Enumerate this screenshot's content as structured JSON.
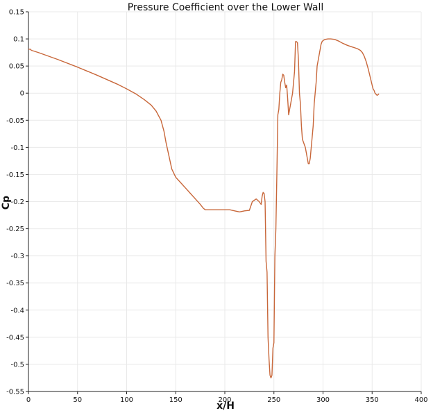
{
  "chart_data": {
    "type": "line",
    "title": "Pressure Coefficient over the Lower Wall",
    "xlabel": "x/H",
    "ylabel": "Cp",
    "xlim": [
      0,
      400
    ],
    "ylim": [
      -0.55,
      0.15
    ],
    "x_ticks": [
      "0",
      "50",
      "100",
      "150",
      "200",
      "250",
      "300",
      "350",
      "400"
    ],
    "y_ticks": [
      "0.15",
      "0.1",
      "0.05",
      "0",
      "-0.05",
      "-0.1",
      "-0.15",
      "-0.2",
      "-0.25",
      "-0.3",
      "-0.35",
      "-0.4",
      "-0.45",
      "-0.5",
      "-0.55"
    ],
    "grid": true,
    "series_color": "#c8673a",
    "series": [
      {
        "x": [
          0,
          2,
          3,
          10,
          30,
          50,
          70,
          90,
          100,
          110,
          118,
          125,
          130,
          135,
          138,
          140,
          143,
          146,
          150,
          155,
          160,
          165,
          170,
          175,
          178,
          180,
          190,
          200,
          205,
          210,
          215,
          220,
          225,
          228,
          232,
          235,
          237,
          238,
          239,
          240,
          241,
          242,
          243,
          244,
          245,
          246,
          247,
          248,
          249,
          250,
          251,
          252,
          253,
          254,
          255,
          256,
          257,
          258,
          259,
          260,
          261,
          262,
          263,
          264,
          265,
          266,
          267,
          268,
          269,
          270,
          271,
          272,
          273,
          274,
          275,
          276,
          277,
          278,
          279,
          280,
          281,
          282,
          283,
          284,
          285,
          286,
          287,
          288,
          289,
          290,
          291,
          292,
          293,
          294,
          295,
          296,
          297,
          298,
          299,
          300,
          302,
          305,
          308,
          312,
          316,
          320,
          325,
          330,
          335,
          338,
          340,
          342,
          344,
          346,
          348,
          350,
          351,
          352,
          353,
          354,
          355,
          356,
          357
        ],
        "y": [
          0.081,
          0.081,
          0.079,
          0.075,
          0.062,
          0.048,
          0.033,
          0.017,
          0.008,
          -0.002,
          -0.012,
          -0.022,
          -0.033,
          -0.05,
          -0.07,
          -0.09,
          -0.115,
          -0.14,
          -0.155,
          -0.165,
          -0.175,
          -0.185,
          -0.195,
          -0.205,
          -0.212,
          -0.215,
          -0.215,
          -0.215,
          -0.215,
          -0.217,
          -0.219,
          -0.217,
          -0.216,
          -0.2,
          -0.195,
          -0.2,
          -0.205,
          -0.19,
          -0.183,
          -0.185,
          -0.2,
          -0.31,
          -0.33,
          -0.45,
          -0.49,
          -0.52,
          -0.525,
          -0.52,
          -0.47,
          -0.46,
          -0.3,
          -0.25,
          -0.15,
          -0.04,
          -0.03,
          0.0,
          0.02,
          0.025,
          0.035,
          0.033,
          0.02,
          0.01,
          0.015,
          -0.01,
          -0.04,
          -0.03,
          -0.02,
          -0.01,
          0.0,
          0.02,
          0.04,
          0.095,
          0.095,
          0.093,
          0.06,
          0.0,
          -0.02,
          -0.06,
          -0.085,
          -0.09,
          -0.095,
          -0.1,
          -0.11,
          -0.12,
          -0.13,
          -0.13,
          -0.12,
          -0.1,
          -0.08,
          -0.06,
          -0.02,
          0.0,
          0.02,
          0.05,
          0.06,
          0.07,
          0.08,
          0.09,
          0.095,
          0.097,
          0.099,
          0.1,
          0.1,
          0.099,
          0.096,
          0.092,
          0.088,
          0.085,
          0.082,
          0.079,
          0.075,
          0.068,
          0.058,
          0.045,
          0.03,
          0.015,
          0.008,
          0.005,
          0.0,
          -0.002,
          -0.004,
          -0.003,
          -0.001
        ]
      }
    ]
  }
}
